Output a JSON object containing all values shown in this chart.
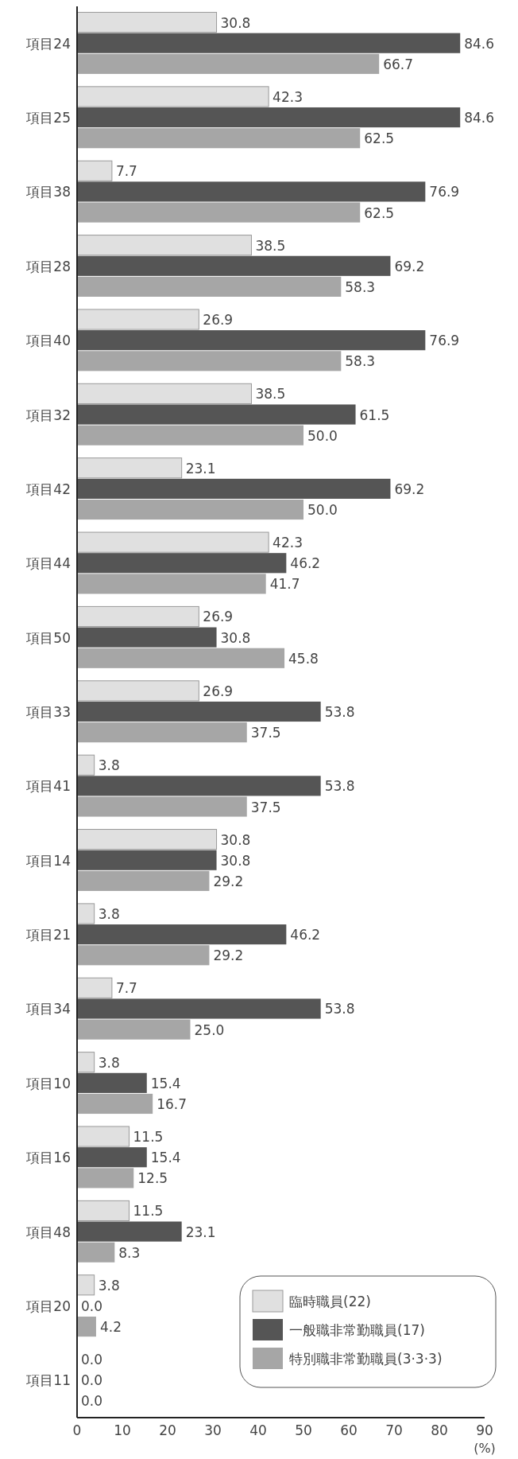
{
  "chart_data": {
    "type": "bar",
    "orientation": "horizontal",
    "xlabel": "(%)",
    "xlim": [
      0,
      90
    ],
    "xticks": [
      0,
      10,
      20,
      30,
      40,
      50,
      60,
      70,
      80,
      90
    ],
    "grid": false,
    "legend": "bottom right",
    "categories": [
      "項目24",
      "項目25",
      "項目38",
      "項目28",
      "項目40",
      "項目32",
      "項目42",
      "項目44",
      "項目50",
      "項目33",
      "項目41",
      "項目14",
      "項目21",
      "項目34",
      "項目10",
      "項目16",
      "項目48",
      "項目20",
      "項目11"
    ],
    "series": [
      {
        "name": "臨時職員(22)",
        "color": "#e0e0e0",
        "values": [
          30.8,
          42.3,
          7.7,
          38.5,
          26.9,
          38.5,
          23.1,
          42.3,
          26.9,
          26.9,
          3.8,
          30.8,
          3.8,
          7.7,
          3.8,
          11.5,
          11.5,
          3.8,
          0.0
        ],
        "value_labels": [
          "30.8",
          "42.3",
          "7.7",
          "38.5",
          "26.9",
          "38.5",
          "23.1",
          "42.3",
          "26.9",
          "26.9",
          "3.8",
          "30.8",
          "3.8",
          "7.7",
          "3.8",
          "11.5",
          "11.5",
          "3.8",
          "0.0"
        ]
      },
      {
        "name": "一般職非常勤職員(17)",
        "color": "#555555",
        "values": [
          84.6,
          84.6,
          76.9,
          69.2,
          76.9,
          61.5,
          69.2,
          46.2,
          30.8,
          53.8,
          53.8,
          30.8,
          46.2,
          53.8,
          15.4,
          15.4,
          23.1,
          0.0,
          0.0
        ],
        "value_labels": [
          "84.6",
          "84.6",
          "76.9",
          "69.2",
          "76.9",
          "61.5",
          "69.2",
          "46.2",
          "30.8",
          "53.8",
          "53.8",
          "30.8",
          "46.2",
          "53.8",
          "15.4",
          "15.4",
          "23.1",
          "0.0",
          "0.0"
        ]
      },
      {
        "name": "特別職非常勤職員(3·3·3)",
        "color": "#a6a6a6",
        "values": [
          66.7,
          62.5,
          62.5,
          58.3,
          58.3,
          50.0,
          50.0,
          41.7,
          45.8,
          37.5,
          37.5,
          29.2,
          29.2,
          25.0,
          16.7,
          12.5,
          8.3,
          4.2,
          0.0
        ],
        "value_labels": [
          "66.7",
          "62.5",
          "62.5",
          "58.3",
          "58.3",
          "50.0",
          "50.0",
          "41.7",
          "45.8",
          "37.5",
          "37.5",
          "29.2",
          "29.2",
          "25.0",
          "16.7",
          "12.5",
          "8.3",
          "4.2",
          "0.0"
        ]
      }
    ]
  }
}
